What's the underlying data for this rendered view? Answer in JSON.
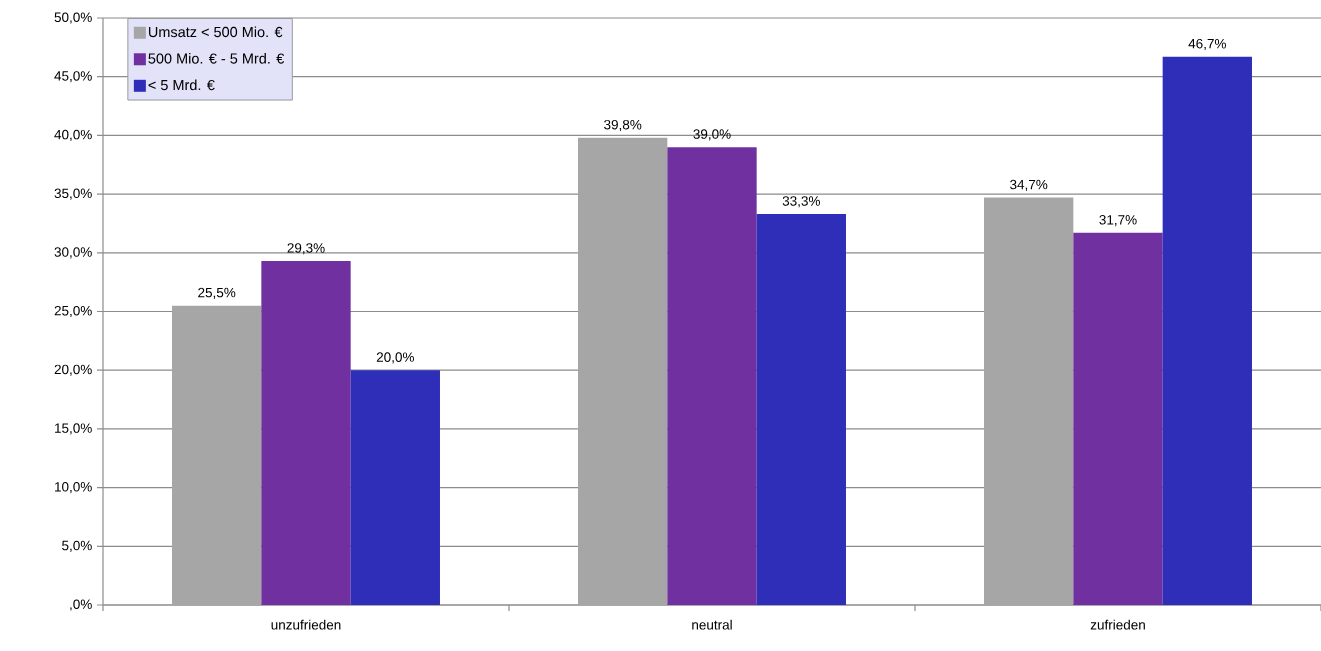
{
  "chart_data": {
    "type": "bar",
    "categories": [
      "unzufrieden",
      "neutral",
      "zufrieden"
    ],
    "series": [
      {
        "name": "Umsatz < 500 Mio. €",
        "color": "#a6a6a6",
        "values": [
          25.5,
          39.8,
          34.7
        ],
        "value_labels": [
          "25,5%",
          "39,8%",
          "34,7%"
        ]
      },
      {
        "name": "500 Mio. € - 5 Mrd. €",
        "color": "#7030a0",
        "values": [
          29.3,
          39.0,
          31.7
        ],
        "value_labels": [
          "29,3%",
          "39,0%",
          "31,7%"
        ]
      },
      {
        "name": "< 5 Mrd. €",
        "color": "#2e2eb8",
        "values": [
          20.0,
          33.3,
          46.7
        ],
        "value_labels": [
          "20,0%",
          "33,3%",
          "46,7%"
        ]
      }
    ],
    "ylim": [
      0,
      50
    ],
    "yticks": [
      {
        "value": 0,
        "label": ",0%"
      },
      {
        "value": 5,
        "label": "5,0%"
      },
      {
        "value": 10,
        "label": "10,0%"
      },
      {
        "value": 15,
        "label": "15,0%"
      },
      {
        "value": 20,
        "label": "20,0%"
      },
      {
        "value": 25,
        "label": "25,0%"
      },
      {
        "value": 30,
        "label": "30,0%"
      },
      {
        "value": 35,
        "label": "35,0%"
      },
      {
        "value": 40,
        "label": "40,0%"
      },
      {
        "value": 45,
        "label": "45,0%"
      },
      {
        "value": 50,
        "label": "50,0%"
      }
    ],
    "grid": "y",
    "legend": "top left"
  }
}
